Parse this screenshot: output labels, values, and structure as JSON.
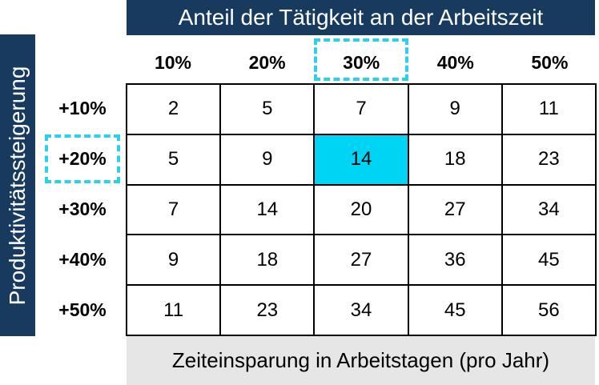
{
  "chart_data": {
    "type": "table",
    "title": "Anteil der Tätigkeit an der Arbeitszeit",
    "ylabel": "Produktivitätssteigerung",
    "xlabel": "Zeiteinsparung in Arbeitstagen (pro Jahr)",
    "columns": [
      "10%",
      "20%",
      "30%",
      "40%",
      "50%"
    ],
    "rows": [
      "+10%",
      "+20%",
      "+30%",
      "+40%",
      "+50%"
    ],
    "values": [
      [
        2,
        5,
        7,
        9,
        11
      ],
      [
        5,
        9,
        14,
        18,
        23
      ],
      [
        7,
        14,
        20,
        27,
        34
      ],
      [
        9,
        18,
        27,
        36,
        45
      ],
      [
        11,
        23,
        34,
        45,
        56
      ]
    ],
    "highlight": {
      "row": 1,
      "col": 2,
      "color": "#00d4f5"
    },
    "dashed_highlight_color": "#2ad0ec",
    "header_color": "#173a5e",
    "footer_color": "#e6e6e6"
  }
}
